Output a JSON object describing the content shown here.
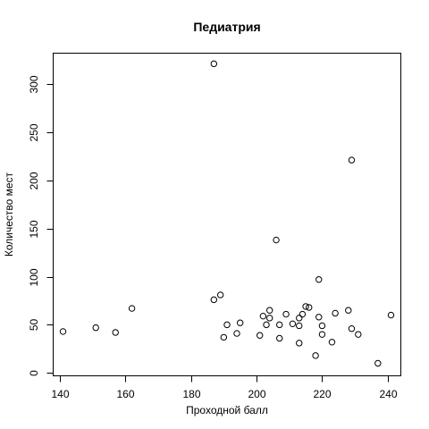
{
  "chart_data": {
    "type": "scatter",
    "title": "Педиатрия",
    "xlabel": "Проходной балл",
    "ylabel": "Количество мест",
    "xlim": [
      138,
      244
    ],
    "ylim": [
      -3,
      332
    ],
    "xticks": [
      140,
      160,
      180,
      200,
      220,
      240
    ],
    "yticks": [
      0,
      50,
      100,
      150,
      200,
      250,
      300
    ],
    "grid": false,
    "points": [
      {
        "x": 141,
        "y": 43
      },
      {
        "x": 151,
        "y": 47
      },
      {
        "x": 157,
        "y": 42
      },
      {
        "x": 162,
        "y": 67
      },
      {
        "x": 187,
        "y": 321
      },
      {
        "x": 187,
        "y": 76
      },
      {
        "x": 189,
        "y": 81
      },
      {
        "x": 190,
        "y": 37
      },
      {
        "x": 191,
        "y": 50
      },
      {
        "x": 194,
        "y": 41
      },
      {
        "x": 195,
        "y": 52
      },
      {
        "x": 201,
        "y": 39
      },
      {
        "x": 202,
        "y": 59
      },
      {
        "x": 203,
        "y": 50
      },
      {
        "x": 204,
        "y": 65
      },
      {
        "x": 204,
        "y": 57
      },
      {
        "x": 206,
        "y": 138
      },
      {
        "x": 207,
        "y": 50
      },
      {
        "x": 207,
        "y": 36
      },
      {
        "x": 209,
        "y": 61
      },
      {
        "x": 211,
        "y": 51
      },
      {
        "x": 213,
        "y": 57
      },
      {
        "x": 213,
        "y": 49
      },
      {
        "x": 213,
        "y": 31
      },
      {
        "x": 214,
        "y": 61
      },
      {
        "x": 215,
        "y": 69
      },
      {
        "x": 216,
        "y": 68
      },
      {
        "x": 218,
        "y": 18
      },
      {
        "x": 219,
        "y": 97
      },
      {
        "x": 219,
        "y": 58
      },
      {
        "x": 220,
        "y": 49
      },
      {
        "x": 220,
        "y": 40
      },
      {
        "x": 223,
        "y": 32
      },
      {
        "x": 224,
        "y": 62
      },
      {
        "x": 228,
        "y": 65
      },
      {
        "x": 229,
        "y": 221
      },
      {
        "x": 229,
        "y": 46
      },
      {
        "x": 231,
        "y": 40
      },
      {
        "x": 237,
        "y": 10
      },
      {
        "x": 241,
        "y": 60
      }
    ]
  }
}
